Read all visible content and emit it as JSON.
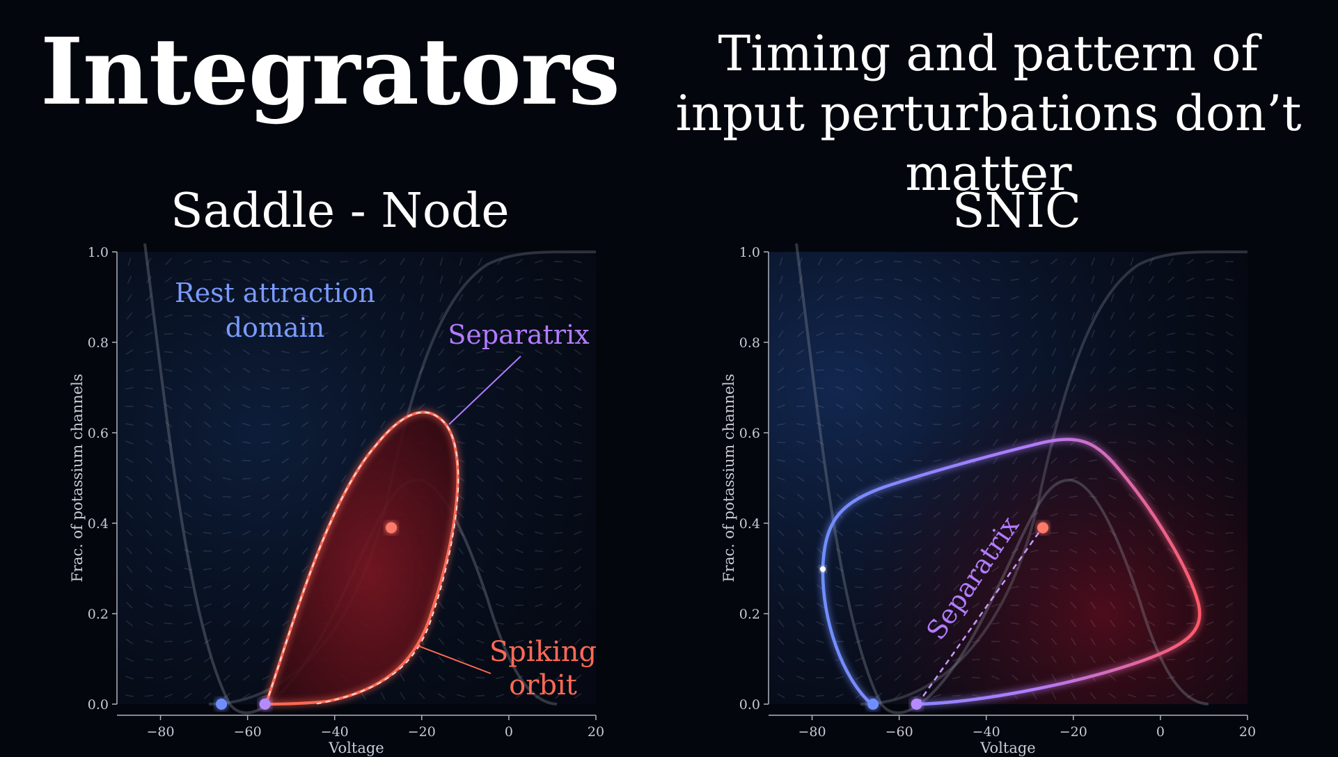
{
  "title": "Integrators",
  "subtitle": "Timing and pattern of input perturbations don’t matter",
  "panels": [
    {
      "title": "Saddle - Node",
      "x_label": "Voltage",
      "y_label": "Frac. of potassium channels",
      "x_range": [
        -90,
        20
      ],
      "y_range": [
        0,
        1.0
      ],
      "x_ticks": [
        -80,
        -60,
        -40,
        -20,
        0,
        20
      ],
      "y_ticks": [
        0.0,
        0.2,
        0.4,
        0.6,
        0.8,
        1.0
      ],
      "annotations": {
        "rest_line1": "Rest attraction",
        "rest_line2": "domain",
        "separatrix": "Separatrix",
        "spiking_line1": "Spiking",
        "spiking_line2": "orbit"
      },
      "fixed_points": [
        {
          "name": "stable node",
          "v": -66,
          "n": 0.0,
          "color": "#6f8fff"
        },
        {
          "name": "saddle",
          "v": -56,
          "n": 0.0,
          "color": "#b48bff"
        },
        {
          "name": "unstable focus",
          "v": -27,
          "n": 0.39,
          "color": "#ff7a6a"
        }
      ]
    },
    {
      "title": "SNIC",
      "x_label": "Voltage",
      "y_label": "Frac. of potassium channels",
      "x_range": [
        -90,
        20
      ],
      "y_range": [
        0,
        1.0
      ],
      "x_ticks": [
        -80,
        -60,
        -40,
        -20,
        0,
        20
      ],
      "y_ticks": [
        0.0,
        0.2,
        0.4,
        0.6,
        0.8,
        1.0
      ],
      "annotations": {
        "separatrix": "Separatrix"
      },
      "fixed_points": [
        {
          "name": "stable node",
          "v": -66,
          "n": 0.0,
          "color": "#6f8fff"
        },
        {
          "name": "saddle",
          "v": -56,
          "n": 0.0,
          "color": "#b48bff"
        },
        {
          "name": "unstable focus",
          "v": -27,
          "n": 0.39,
          "color": "#ff7a6a"
        }
      ]
    }
  ],
  "colors": {
    "background": "#04060d",
    "rest_blue": "#7b9bff",
    "separatrix_purple": "#b27cff",
    "spiking_red": "#ff6a55"
  }
}
